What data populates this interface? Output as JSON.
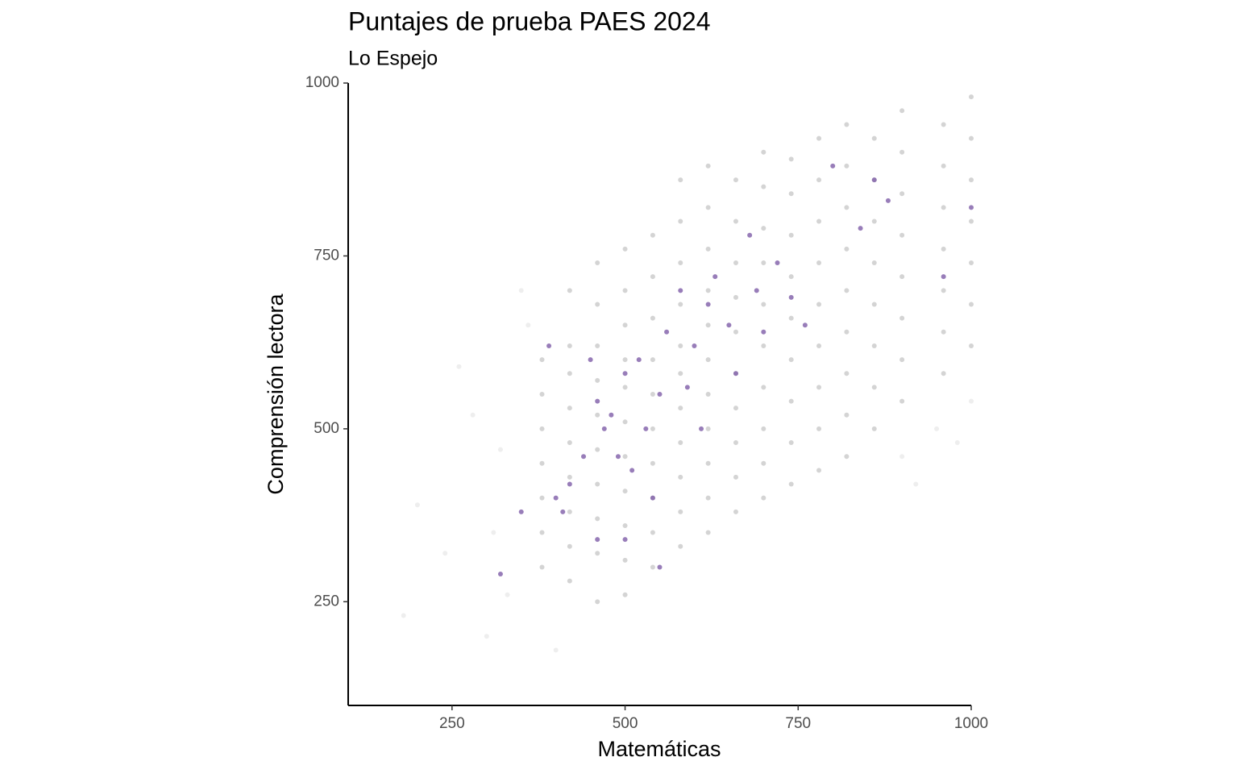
{
  "chart_data": {
    "type": "scatter",
    "title": "Puntajes de prueba PAES 2024",
    "subtitle": "Lo Espejo",
    "x_label": "Matemáticas",
    "y_label": "Comprensión lectora",
    "xlim": [
      100,
      1000
    ],
    "ylim": [
      100,
      1000
    ],
    "xticks": [
      250,
      500,
      750,
      1000
    ],
    "yticks": [
      250,
      500,
      750,
      1000
    ],
    "grid": false,
    "series": [
      {
        "color": "#eeeeee",
        "x": [
          200,
          240,
          260,
          300,
          320,
          180,
          350,
          330,
          280,
          900,
          950,
          1000,
          400,
          360,
          310,
          920,
          980
        ],
        "values": [
          390,
          320,
          590,
          200,
          470,
          230,
          700,
          260,
          520,
          460,
          500,
          540,
          180,
          650,
          350,
          420,
          480
        ]
      },
      {
        "color": "#d4d4d4",
        "x": [
          380,
          380,
          380,
          380,
          380,
          380,
          380,
          420,
          420,
          420,
          420,
          420,
          420,
          420,
          420,
          420,
          460,
          460,
          460,
          460,
          460,
          460,
          460,
          460,
          460,
          460,
          500,
          500,
          500,
          500,
          500,
          500,
          500,
          500,
          500,
          500,
          500,
          540,
          540,
          540,
          540,
          540,
          540,
          540,
          540,
          540,
          540,
          580,
          580,
          580,
          580,
          580,
          580,
          580,
          580,
          580,
          580,
          580,
          620,
          620,
          620,
          620,
          620,
          620,
          620,
          620,
          620,
          620,
          620,
          660,
          660,
          660,
          660,
          660,
          660,
          660,
          660,
          660,
          660,
          700,
          700,
          700,
          700,
          700,
          700,
          700,
          700,
          700,
          700,
          740,
          740,
          740,
          740,
          740,
          740,
          740,
          740,
          740,
          780,
          780,
          780,
          780,
          780,
          780,
          780,
          780,
          780,
          820,
          820,
          820,
          820,
          820,
          820,
          820,
          820,
          820,
          860,
          860,
          860,
          860,
          860,
          860,
          860,
          860,
          900,
          900,
          900,
          900,
          900,
          900,
          900,
          900,
          960,
          960,
          960,
          960,
          960,
          960,
          960,
          1000,
          1000,
          1000,
          1000,
          1000,
          1000,
          1000
        ],
        "values": [
          300,
          350,
          400,
          450,
          500,
          550,
          600,
          280,
          330,
          380,
          430,
          480,
          530,
          580,
          620,
          700,
          250,
          320,
          370,
          420,
          470,
          520,
          570,
          620,
          680,
          740,
          260,
          310,
          360,
          410,
          460,
          510,
          560,
          600,
          650,
          700,
          760,
          300,
          350,
          400,
          450,
          500,
          550,
          600,
          660,
          720,
          780,
          330,
          380,
          430,
          480,
          530,
          580,
          620,
          680,
          740,
          800,
          860,
          350,
          400,
          450,
          500,
          550,
          600,
          650,
          700,
          760,
          820,
          880,
          380,
          430,
          480,
          530,
          580,
          640,
          690,
          740,
          800,
          860,
          400,
          450,
          500,
          560,
          620,
          680,
          740,
          790,
          850,
          900,
          420,
          480,
          540,
          600,
          660,
          720,
          780,
          840,
          890,
          440,
          500,
          560,
          620,
          680,
          740,
          800,
          860,
          920,
          460,
          520,
          580,
          640,
          700,
          760,
          820,
          880,
          940,
          500,
          560,
          620,
          680,
          740,
          800,
          860,
          920,
          540,
          600,
          660,
          720,
          780,
          840,
          900,
          960,
          580,
          640,
          700,
          760,
          820,
          880,
          940,
          620,
          680,
          740,
          800,
          860,
          920,
          980
        ]
      },
      {
        "color": "#7e5da8",
        "x": [
          320,
          350,
          390,
          400,
          410,
          420,
          440,
          450,
          460,
          470,
          480,
          490,
          500,
          510,
          520,
          530,
          550,
          560,
          580,
          590,
          600,
          610,
          620,
          630,
          650,
          660,
          680,
          690,
          700,
          720,
          740,
          760,
          800,
          840,
          860,
          880,
          960,
          1000,
          550,
          460,
          500,
          540
        ],
        "values": [
          290,
          380,
          620,
          400,
          380,
          420,
          460,
          600,
          540,
          500,
          520,
          460,
          580,
          440,
          600,
          500,
          550,
          640,
          700,
          560,
          620,
          500,
          680,
          720,
          650,
          580,
          780,
          700,
          640,
          740,
          690,
          650,
          880,
          790,
          860,
          830,
          720,
          820,
          300,
          340,
          340,
          400
        ]
      }
    ]
  }
}
